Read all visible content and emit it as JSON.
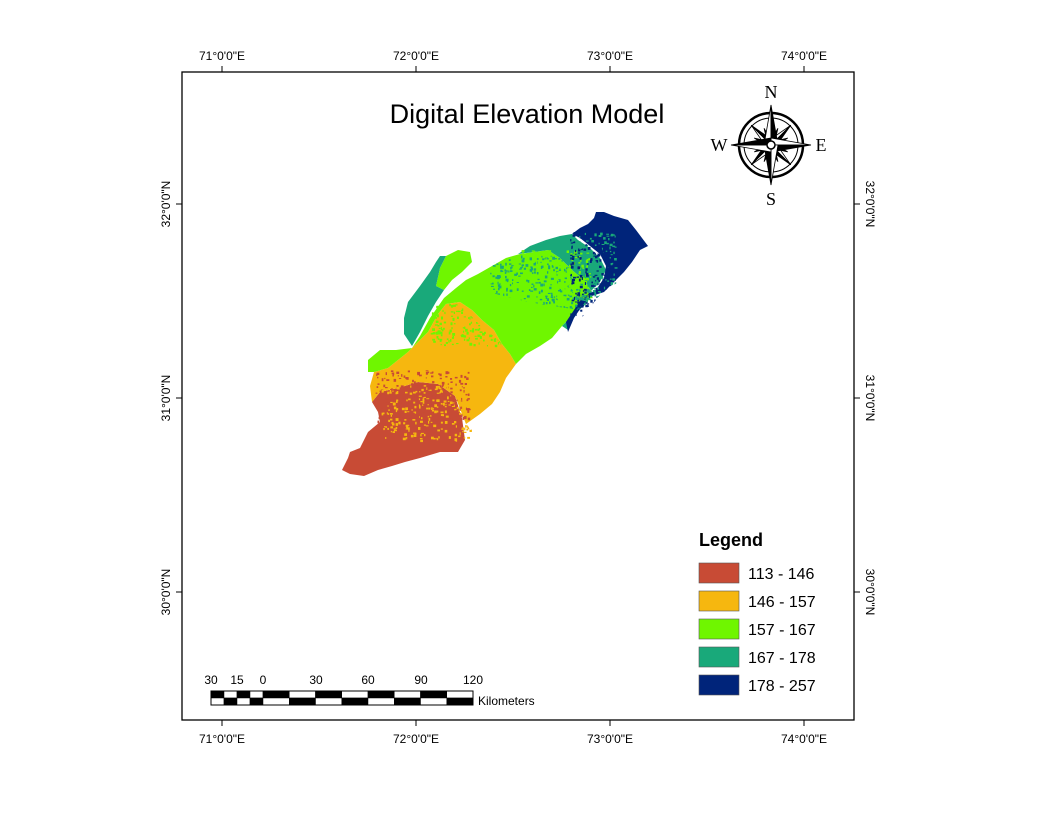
{
  "title": "Digital Elevation Model",
  "longitude_labels": [
    "71°0'0\"E",
    "72°0'0\"E",
    "73°0'0\"E",
    "74°0'0\"E"
  ],
  "latitude_labels": [
    "32°0'0\"N",
    "31°0'0\"N",
    "30°0'0\"N"
  ],
  "north_arrow": {
    "n": "N",
    "s": "S",
    "e": "E",
    "w": "W"
  },
  "legend": {
    "title": "Legend",
    "classes": [
      {
        "label": "113 - 146",
        "color": "#c84b35"
      },
      {
        "label": "146 - 157",
        "color": "#f6b70f"
      },
      {
        "label": "157 - 167",
        "color": "#6ff600"
      },
      {
        "label": "167 - 178",
        "color": "#19a97a"
      },
      {
        "label": "178 - 257",
        "color": "#00247a"
      }
    ]
  },
  "scale_bar": {
    "labels": [
      "30",
      "15",
      "0",
      "30",
      "60",
      "90",
      "120"
    ],
    "unit": "Kilometers"
  }
}
